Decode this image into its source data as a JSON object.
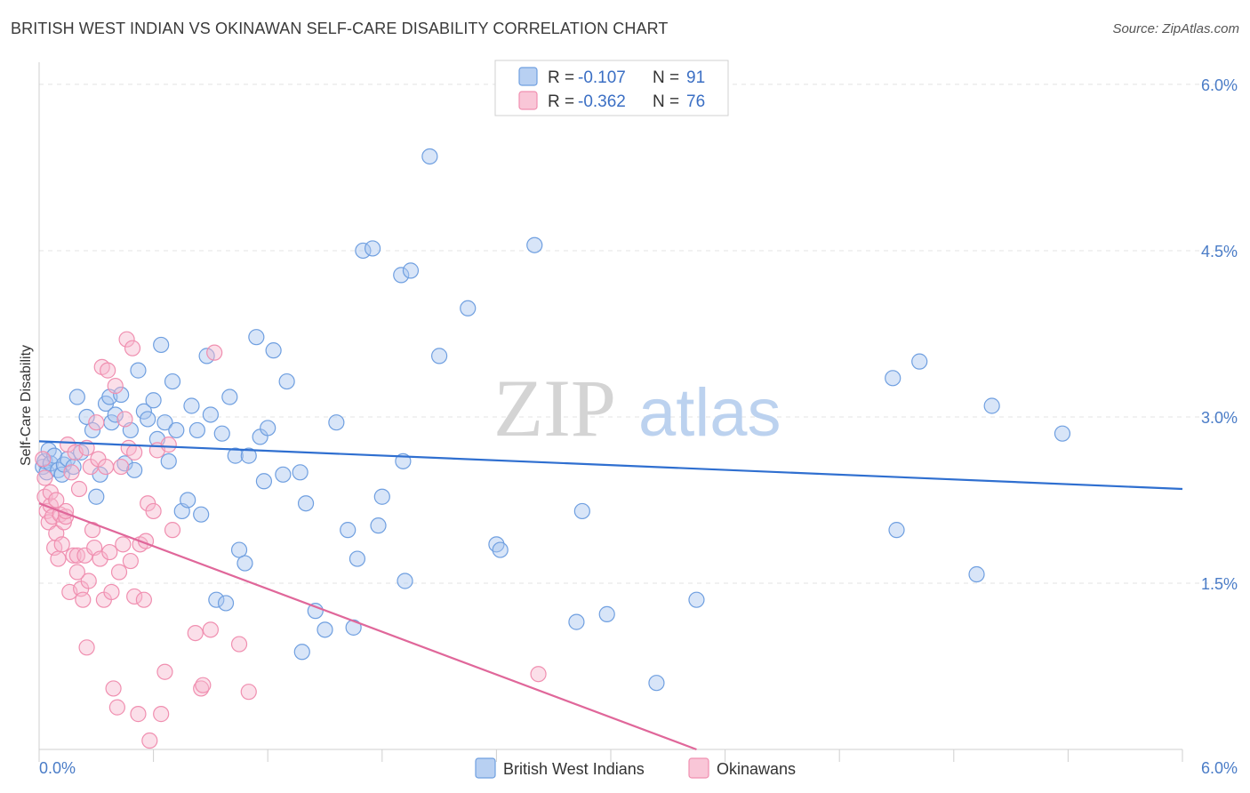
{
  "title": "BRITISH WEST INDIAN VS OKINAWAN SELF-CARE DISABILITY CORRELATION CHART",
  "source": "Source: ZipAtlas.com",
  "watermark": {
    "zip": "ZIP",
    "atlas": "atlas"
  },
  "legend": {
    "r_label": "R =",
    "n_label": "N =",
    "entries": [
      {
        "r": "-0.107",
        "n": "91",
        "color": "#6f9fe0"
      },
      {
        "r": "-0.362",
        "n": "76",
        "color": "#f08fb0"
      }
    ]
  },
  "bottom_legend": [
    "British West Indians",
    "Okinawans"
  ],
  "chart_data": {
    "type": "scatter",
    "title": "BRITISH WEST INDIAN VS OKINAWAN SELF-CARE DISABILITY CORRELATION CHART",
    "xlabel": "",
    "ylabel": "Self-Care Disability",
    "xlim": [
      0,
      6.0
    ],
    "ylim": [
      0,
      6.2
    ],
    "x_tick_labels": [
      "0.0%",
      "6.0%"
    ],
    "y_ticks": [
      1.5,
      3.0,
      4.5,
      6.0
    ],
    "y_tick_labels": [
      "1.5%",
      "3.0%",
      "4.5%",
      "6.0%"
    ],
    "grid": true,
    "series": [
      {
        "name": "British West Indians",
        "color": "#6f9fe0",
        "trend": {
          "x": [
            0,
            6.0
          ],
          "y": [
            2.78,
            2.35
          ]
        },
        "points": [
          [
            0.02,
            2.55
          ],
          [
            0.03,
            2.6
          ],
          [
            0.04,
            2.5
          ],
          [
            0.05,
            2.7
          ],
          [
            0.06,
            2.58
          ],
          [
            0.08,
            2.65
          ],
          [
            0.1,
            2.52
          ],
          [
            0.12,
            2.48
          ],
          [
            0.13,
            2.57
          ],
          [
            0.15,
            2.62
          ],
          [
            0.18,
            2.55
          ],
          [
            0.2,
            3.18
          ],
          [
            0.22,
            2.68
          ],
          [
            0.25,
            3.0
          ],
          [
            0.28,
            2.88
          ],
          [
            0.3,
            2.28
          ],
          [
            0.32,
            2.48
          ],
          [
            0.35,
            3.12
          ],
          [
            0.37,
            3.18
          ],
          [
            0.38,
            2.95
          ],
          [
            0.4,
            3.02
          ],
          [
            0.43,
            3.2
          ],
          [
            0.45,
            2.58
          ],
          [
            0.48,
            2.88
          ],
          [
            0.5,
            2.52
          ],
          [
            0.52,
            3.42
          ],
          [
            0.55,
            3.05
          ],
          [
            0.57,
            2.98
          ],
          [
            0.6,
            3.15
          ],
          [
            0.62,
            2.8
          ],
          [
            0.64,
            3.65
          ],
          [
            0.66,
            2.95
          ],
          [
            0.68,
            2.6
          ],
          [
            0.7,
            3.32
          ],
          [
            0.72,
            2.88
          ],
          [
            0.75,
            2.15
          ],
          [
            0.78,
            2.25
          ],
          [
            0.8,
            3.1
          ],
          [
            0.83,
            2.88
          ],
          [
            0.85,
            2.12
          ],
          [
            0.88,
            3.55
          ],
          [
            0.9,
            3.02
          ],
          [
            0.93,
            1.35
          ],
          [
            0.96,
            2.85
          ],
          [
            0.98,
            1.32
          ],
          [
            1.0,
            3.18
          ],
          [
            1.03,
            2.65
          ],
          [
            1.05,
            1.8
          ],
          [
            1.08,
            1.68
          ],
          [
            1.1,
            2.65
          ],
          [
            1.14,
            3.72
          ],
          [
            1.16,
            2.82
          ],
          [
            1.18,
            2.42
          ],
          [
            1.2,
            2.9
          ],
          [
            1.23,
            3.6
          ],
          [
            1.28,
            2.48
          ],
          [
            1.3,
            3.32
          ],
          [
            1.37,
            2.5
          ],
          [
            1.38,
            0.88
          ],
          [
            1.4,
            2.22
          ],
          [
            1.45,
            1.25
          ],
          [
            1.5,
            1.08
          ],
          [
            1.56,
            2.95
          ],
          [
            1.62,
            1.98
          ],
          [
            1.65,
            1.1
          ],
          [
            1.67,
            1.72
          ],
          [
            1.7,
            4.5
          ],
          [
            1.75,
            4.52
          ],
          [
            1.78,
            2.02
          ],
          [
            1.8,
            2.28
          ],
          [
            1.9,
            4.28
          ],
          [
            1.91,
            2.6
          ],
          [
            1.92,
            1.52
          ],
          [
            1.95,
            4.32
          ],
          [
            2.05,
            5.35
          ],
          [
            2.1,
            3.55
          ],
          [
            2.25,
            3.98
          ],
          [
            2.4,
            1.85
          ],
          [
            2.42,
            1.8
          ],
          [
            2.6,
            4.55
          ],
          [
            2.82,
            1.15
          ],
          [
            2.85,
            2.15
          ],
          [
            2.98,
            1.22
          ],
          [
            3.24,
            0.6
          ],
          [
            3.45,
            1.35
          ],
          [
            4.48,
            3.35
          ],
          [
            4.5,
            1.98
          ],
          [
            4.62,
            3.5
          ],
          [
            4.92,
            1.58
          ],
          [
            5.0,
            3.1
          ],
          [
            5.37,
            2.85
          ]
        ]
      },
      {
        "name": "Okinawans",
        "color": "#f08fb0",
        "trend": {
          "x": [
            0,
            3.45
          ],
          "y": [
            2.22,
            0.0
          ]
        },
        "points": [
          [
            0.02,
            2.62
          ],
          [
            0.03,
            2.28
          ],
          [
            0.04,
            2.15
          ],
          [
            0.05,
            2.05
          ],
          [
            0.06,
            2.2
          ],
          [
            0.07,
            2.1
          ],
          [
            0.08,
            1.82
          ],
          [
            0.09,
            1.95
          ],
          [
            0.1,
            1.72
          ],
          [
            0.11,
            2.12
          ],
          [
            0.12,
            1.85
          ],
          [
            0.13,
            2.05
          ],
          [
            0.14,
            2.1
          ],
          [
            0.15,
            2.75
          ],
          [
            0.16,
            1.42
          ],
          [
            0.17,
            2.5
          ],
          [
            0.18,
            1.75
          ],
          [
            0.19,
            2.68
          ],
          [
            0.2,
            1.75
          ],
          [
            0.21,
            2.35
          ],
          [
            0.22,
            1.45
          ],
          [
            0.23,
            1.35
          ],
          [
            0.24,
            1.75
          ],
          [
            0.25,
            0.92
          ],
          [
            0.26,
            1.52
          ],
          [
            0.27,
            2.55
          ],
          [
            0.28,
            1.98
          ],
          [
            0.29,
            1.82
          ],
          [
            0.3,
            2.95
          ],
          [
            0.31,
            2.62
          ],
          [
            0.32,
            1.72
          ],
          [
            0.33,
            3.45
          ],
          [
            0.34,
            1.35
          ],
          [
            0.35,
            2.55
          ],
          [
            0.36,
            3.42
          ],
          [
            0.37,
            1.78
          ],
          [
            0.38,
            1.42
          ],
          [
            0.39,
            0.55
          ],
          [
            0.4,
            3.28
          ],
          [
            0.41,
            0.38
          ],
          [
            0.42,
            1.6
          ],
          [
            0.43,
            2.55
          ],
          [
            0.45,
            2.98
          ],
          [
            0.46,
            3.7
          ],
          [
            0.47,
            2.72
          ],
          [
            0.48,
            1.7
          ],
          [
            0.49,
            3.62
          ],
          [
            0.5,
            1.38
          ],
          [
            0.52,
            0.32
          ],
          [
            0.53,
            1.85
          ],
          [
            0.55,
            1.35
          ],
          [
            0.57,
            2.22
          ],
          [
            0.58,
            0.08
          ],
          [
            0.6,
            2.15
          ],
          [
            0.62,
            2.7
          ],
          [
            0.64,
            0.32
          ],
          [
            0.66,
            0.7
          ],
          [
            0.68,
            2.75
          ],
          [
            0.7,
            1.98
          ],
          [
            0.82,
            1.05
          ],
          [
            0.85,
            0.55
          ],
          [
            0.86,
            0.58
          ],
          [
            0.9,
            1.08
          ],
          [
            0.92,
            3.58
          ],
          [
            1.05,
            0.95
          ],
          [
            1.1,
            0.52
          ],
          [
            2.62,
            0.68
          ],
          [
            0.03,
            2.45
          ],
          [
            0.06,
            2.32
          ],
          [
            0.09,
            2.25
          ],
          [
            0.14,
            2.15
          ],
          [
            0.2,
            1.6
          ],
          [
            0.25,
            2.72
          ],
          [
            0.44,
            1.85
          ],
          [
            0.5,
            2.68
          ],
          [
            0.56,
            1.88
          ]
        ]
      }
    ]
  }
}
